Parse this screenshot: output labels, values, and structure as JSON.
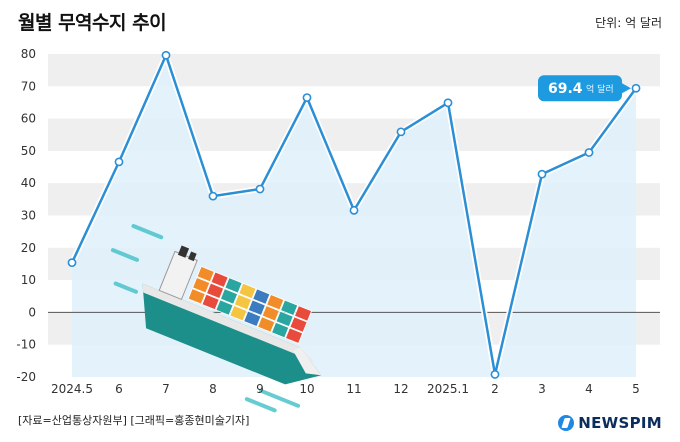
{
  "header": {
    "title": "월별 무역수지 추이",
    "unit": "단위: 억 달러"
  },
  "footer": {
    "source": "[자료=산업통상자원부] [그래픽=홍종현미술기자]",
    "brand": "NEWSPIM"
  },
  "callout": {
    "value": "69.4",
    "unit": "억 달러"
  },
  "colors": {
    "line": "#2b8fd6",
    "area": "#dff0fb",
    "band": "#efefef",
    "callout": "#1e9be0"
  },
  "illustration": "container-ship-icon",
  "chart_data": {
    "type": "line",
    "title": "월별 무역수지 추이",
    "ylabel": "",
    "xlabel": "",
    "unit": "억 달러",
    "categories": [
      "2024.5",
      "6",
      "7",
      "8",
      "9",
      "10",
      "11",
      "12",
      "2025.1",
      "2",
      "3",
      "4",
      "5"
    ],
    "values": [
      15.4,
      46.6,
      79.6,
      36.0,
      38.2,
      66.5,
      31.6,
      55.9,
      64.9,
      -19.2,
      42.8,
      49.5,
      69.4
    ],
    "ylim": [
      -20,
      80
    ],
    "yticks": [
      -20,
      -10,
      0,
      10,
      20,
      30,
      40,
      50,
      60,
      70,
      80
    ],
    "grid": "horizontal-bands",
    "annotation": {
      "category": "5",
      "value": 69.4,
      "label": "69.4 억 달러"
    }
  }
}
